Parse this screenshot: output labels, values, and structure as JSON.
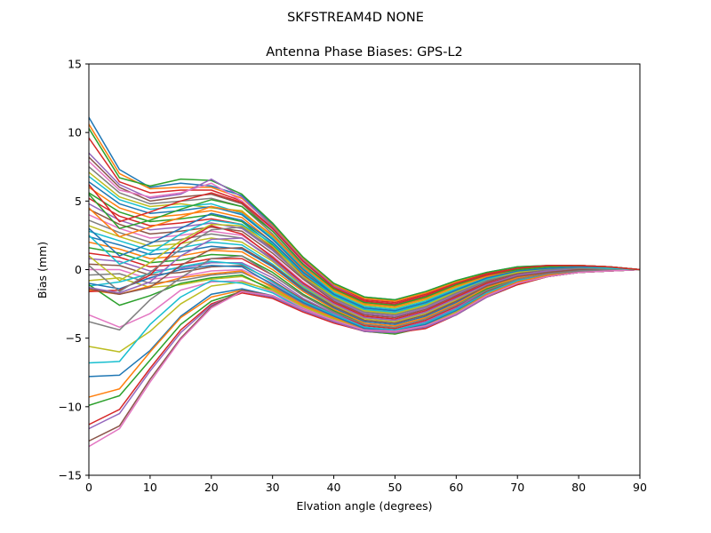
{
  "figure": {
    "suptitle": "SKFSTREAM4D     NONE"
  },
  "chart_data": {
    "type": "line",
    "title": "Antenna Phase Biases: GPS-L2",
    "xlabel": "Elvation angle (degrees)",
    "ylabel": "Bias (mm)",
    "xlim": [
      0,
      90
    ],
    "ylim": [
      -15,
      15
    ],
    "xticks": [
      0,
      10,
      20,
      30,
      40,
      50,
      60,
      70,
      80,
      90
    ],
    "yticks": [
      -15,
      -10,
      -5,
      0,
      5,
      10,
      15
    ],
    "grid": false,
    "legend": "none",
    "x": [
      0,
      5,
      10,
      15,
      20,
      25,
      30,
      35,
      40,
      45,
      50,
      55,
      60,
      65,
      70,
      75,
      80,
      85,
      90
    ],
    "palette": [
      "#1f77b4",
      "#ff7f0e",
      "#2ca02c",
      "#d62728",
      "#9467bd",
      "#8c564b",
      "#e377c2",
      "#7f7f7f",
      "#bcbd22",
      "#17becf"
    ],
    "series": [
      {
        "values": [
          11.1,
          7.3,
          6.0,
          6.3,
          6.1,
          5.4,
          3.3,
          0.9,
          -1.0,
          -2.0,
          -2.2,
          -1.6,
          -0.8,
          -0.2,
          0.2,
          0.3,
          0.3,
          0.2,
          0.0
        ]
      },
      {
        "values": [
          10.6,
          7.0,
          5.9,
          6.0,
          6.0,
          5.2,
          3.2,
          0.8,
          -1.1,
          -2.1,
          -2.3,
          -1.7,
          -0.9,
          -0.3,
          0.1,
          0.3,
          0.3,
          0.2,
          0.0
        ]
      },
      {
        "values": [
          10.3,
          6.7,
          6.1,
          6.6,
          6.5,
          5.5,
          3.4,
          0.9,
          -1.0,
          -2.0,
          -2.2,
          -1.6,
          -0.8,
          -0.2,
          0.2,
          0.3,
          0.3,
          0.2,
          0.0
        ]
      },
      {
        "values": [
          9.6,
          6.4,
          5.6,
          5.8,
          5.8,
          5.0,
          3.0,
          0.6,
          -1.2,
          -2.2,
          -2.4,
          -1.8,
          -1.0,
          -0.3,
          0.1,
          0.3,
          0.3,
          0.2,
          0.0
        ]
      },
      {
        "values": [
          8.5,
          6.2,
          5.2,
          5.5,
          6.6,
          5.3,
          3.1,
          0.7,
          -1.2,
          -2.3,
          -2.5,
          -1.9,
          -1.0,
          -0.4,
          0.1,
          0.2,
          0.3,
          0.2,
          0.0
        ]
      },
      {
        "values": [
          8.2,
          6.0,
          5.0,
          5.3,
          5.5,
          4.8,
          2.8,
          0.5,
          -1.4,
          -2.4,
          -2.6,
          -2.0,
          -1.1,
          -0.4,
          0.0,
          0.2,
          0.3,
          0.2,
          0.0
        ]
      },
      {
        "values": [
          7.9,
          5.8,
          5.3,
          5.6,
          6.3,
          5.0,
          2.9,
          0.5,
          -1.3,
          -2.3,
          -2.6,
          -2.0,
          -1.1,
          -0.4,
          0.0,
          0.2,
          0.3,
          0.2,
          0.0
        ]
      },
      {
        "values": [
          7.5,
          5.6,
          4.8,
          5.0,
          5.2,
          4.6,
          2.6,
          0.3,
          -1.5,
          -2.5,
          -2.7,
          -2.1,
          -1.2,
          -0.5,
          0.0,
          0.2,
          0.3,
          0.2,
          0.0
        ]
      },
      {
        "values": [
          7.1,
          5.3,
          4.6,
          4.8,
          4.5,
          4.3,
          2.4,
          0.2,
          -1.6,
          -2.6,
          -2.8,
          -2.2,
          -1.3,
          -0.5,
          -0.1,
          0.2,
          0.2,
          0.2,
          0.0
        ]
      },
      {
        "values": [
          6.8,
          5.1,
          4.4,
          4.6,
          4.8,
          4.1,
          2.3,
          0.1,
          -1.7,
          -2.7,
          -2.9,
          -2.3,
          -1.4,
          -0.6,
          -0.1,
          0.2,
          0.2,
          0.2,
          0.0
        ]
      },
      {
        "values": [
          6.4,
          4.8,
          4.1,
          4.3,
          4.6,
          4.0,
          2.2,
          0.0,
          -1.8,
          -2.8,
          -3.0,
          -2.4,
          -1.5,
          -0.6,
          -0.1,
          0.1,
          0.2,
          0.2,
          0.0
        ]
      },
      {
        "values": [
          6.0,
          4.5,
          3.8,
          4.0,
          4.3,
          3.8,
          2.0,
          -0.1,
          -1.9,
          -2.9,
          -3.1,
          -2.5,
          -1.5,
          -0.7,
          -0.2,
          0.1,
          0.2,
          0.1,
          0.0
        ]
      },
      {
        "values": [
          5.6,
          4.2,
          3.5,
          3.7,
          4.0,
          3.5,
          1.8,
          -0.3,
          -2.0,
          -3.0,
          -3.2,
          -2.6,
          -1.6,
          -0.7,
          -0.2,
          0.1,
          0.2,
          0.1,
          0.0
        ]
      },
      {
        "values": [
          5.2,
          3.9,
          3.2,
          3.4,
          3.7,
          3.3,
          1.6,
          -0.4,
          -2.1,
          -3.1,
          -3.3,
          -2.7,
          -1.7,
          -0.8,
          -0.3,
          0.0,
          0.2,
          0.1,
          0.0
        ]
      },
      {
        "values": [
          4.8,
          3.6,
          2.9,
          3.1,
          3.4,
          3.0,
          1.4,
          -0.6,
          -2.2,
          -3.2,
          -3.4,
          -2.8,
          -1.8,
          -0.8,
          -0.3,
          0.0,
          0.1,
          0.1,
          0.0
        ]
      },
      {
        "values": [
          4.4,
          3.3,
          2.6,
          2.8,
          3.1,
          2.8,
          1.2,
          -0.7,
          -2.3,
          -3.3,
          -3.5,
          -2.9,
          -1.9,
          -0.9,
          -0.3,
          0.0,
          0.1,
          0.1,
          0.0
        ]
      },
      {
        "values": [
          4.0,
          3.0,
          2.3,
          2.5,
          2.8,
          2.5,
          1.0,
          -0.9,
          -2.4,
          -3.4,
          -3.6,
          -3.0,
          -2.0,
          -1.0,
          -0.4,
          -0.1,
          0.1,
          0.1,
          0.0
        ]
      },
      {
        "values": [
          3.6,
          2.7,
          2.0,
          2.2,
          2.6,
          2.3,
          0.8,
          -1.0,
          -2.5,
          -3.5,
          -3.7,
          -3.1,
          -2.1,
          -1.0,
          -0.4,
          -0.1,
          0.1,
          0.1,
          0.0
        ]
      },
      {
        "values": [
          3.2,
          2.4,
          1.7,
          1.9,
          2.3,
          2.0,
          0.6,
          -1.2,
          -2.6,
          -3.6,
          -3.8,
          -3.2,
          -2.2,
          -1.1,
          -0.5,
          -0.1,
          0.0,
          0.1,
          0.0
        ]
      },
      {
        "values": [
          2.8,
          2.1,
          1.4,
          1.6,
          2.0,
          1.8,
          0.4,
          -1.3,
          -2.7,
          -3.7,
          -3.9,
          -3.3,
          -2.3,
          -1.2,
          -0.5,
          -0.2,
          0.0,
          0.0,
          0.0
        ]
      },
      {
        "values": [
          2.4,
          1.8,
          1.1,
          1.3,
          1.7,
          1.5,
          0.2,
          -1.5,
          -2.8,
          -3.8,
          -4.0,
          -3.4,
          -2.4,
          -1.2,
          -0.6,
          -0.2,
          0.0,
          0.0,
          0.0
        ]
      },
      {
        "values": [
          2.0,
          1.5,
          0.8,
          1.0,
          1.4,
          1.3,
          0.0,
          -1.6,
          -2.9,
          -3.9,
          -4.1,
          -3.5,
          -2.5,
          -1.3,
          -0.6,
          -0.2,
          0.0,
          0.0,
          0.0
        ]
      },
      {
        "values": [
          1.6,
          1.2,
          0.5,
          0.7,
          1.1,
          1.0,
          -0.2,
          -1.8,
          -3.0,
          -4.0,
          -4.2,
          -3.6,
          -2.6,
          -1.4,
          -0.7,
          -0.3,
          -0.1,
          0.0,
          0.0
        ]
      },
      {
        "values": [
          1.2,
          0.9,
          0.2,
          0.4,
          0.8,
          0.8,
          -0.4,
          -1.9,
          -3.1,
          -4.1,
          -4.3,
          -3.7,
          -2.7,
          -1.5,
          -0.7,
          -0.3,
          -0.1,
          0.0,
          0.0
        ]
      },
      {
        "values": [
          0.8,
          0.6,
          -0.1,
          0.1,
          0.5,
          0.5,
          -0.6,
          -2.1,
          -3.2,
          -4.2,
          -4.4,
          -3.8,
          -2.8,
          -1.5,
          -0.8,
          -0.3,
          -0.1,
          0.0,
          0.0
        ]
      },
      {
        "values": [
          0.4,
          0.3,
          -0.4,
          -0.2,
          0.2,
          0.3,
          -0.8,
          -2.2,
          -3.3,
          -4.3,
          -4.5,
          -3.9,
          -2.9,
          -1.6,
          -0.8,
          -0.4,
          -0.1,
          0.0,
          0.0
        ]
      },
      {
        "values": [
          0.0,
          0.0,
          -0.7,
          -0.5,
          -0.1,
          0.0,
          -1.0,
          -2.4,
          -3.4,
          -4.4,
          -4.6,
          -4.0,
          -3.0,
          -1.7,
          -0.9,
          -0.4,
          -0.2,
          -0.1,
          0.0
        ]
      },
      {
        "values": [
          -0.4,
          -0.3,
          -1.0,
          -0.8,
          -0.4,
          -0.2,
          -1.2,
          -2.5,
          -3.5,
          -4.4,
          -4.6,
          -4.1,
          -3.1,
          -1.8,
          -0.9,
          -0.4,
          -0.2,
          -0.1,
          0.0
        ]
      },
      {
        "values": [
          -0.8,
          -0.6,
          -1.3,
          -1.1,
          -0.7,
          -0.5,
          -1.4,
          -2.7,
          -3.6,
          -4.5,
          -4.7,
          -4.2,
          -3.2,
          -1.9,
          -1.0,
          -0.5,
          -0.2,
          -0.1,
          0.0
        ]
      },
      {
        "values": [
          -1.2,
          -0.9,
          -0.3,
          0.2,
          0.6,
          0.4,
          -0.9,
          -2.3,
          -3.3,
          -4.2,
          -4.4,
          -3.9,
          -2.9,
          -1.7,
          -0.8,
          -0.4,
          -0.1,
          0.0,
          0.0
        ]
      },
      {
        "values": [
          -1.0,
          -1.4,
          -0.6,
          0.0,
          0.3,
          0.2,
          -1.1,
          -2.4,
          -3.4,
          -4.3,
          -4.5,
          -4.0,
          -3.0,
          -1.8,
          -0.9,
          -0.4,
          -0.2,
          -0.1,
          0.0
        ]
      },
      {
        "values": [
          -1.5,
          -1.8,
          -1.2,
          -0.6,
          -0.3,
          -0.1,
          -1.3,
          -2.6,
          -3.5,
          -4.4,
          -4.6,
          -4.1,
          -3.1,
          -1.8,
          -0.9,
          -0.4,
          -0.2,
          -0.1,
          0.0
        ]
      },
      {
        "values": [
          -1.1,
          -2.6,
          -1.9,
          -1.0,
          -0.6,
          -0.4,
          -1.5,
          -2.7,
          -3.6,
          -4.5,
          -4.7,
          -4.2,
          -3.2,
          -1.9,
          -1.0,
          -0.5,
          -0.2,
          -0.1,
          0.0
        ]
      },
      {
        "values": [
          -1.6,
          -1.5,
          -0.4,
          1.9,
          3.2,
          2.6,
          0.9,
          -1.0,
          -2.4,
          -3.4,
          -3.6,
          -3.0,
          -2.0,
          -1.0,
          -0.4,
          -0.1,
          0.1,
          0.1,
          0.0
        ]
      },
      {
        "values": [
          -1.3,
          -1.7,
          -0.9,
          1.0,
          2.2,
          2.3,
          0.7,
          -1.1,
          -2.5,
          -3.5,
          -3.7,
          -3.1,
          -2.1,
          -1.1,
          -0.4,
          -0.1,
          0.1,
          0.1,
          0.0
        ]
      },
      {
        "values": [
          -1.4,
          -1.8,
          -1.3,
          0.3,
          1.5,
          1.6,
          0.3,
          -1.4,
          -2.7,
          -3.7,
          -3.9,
          -3.3,
          -2.3,
          -1.2,
          -0.5,
          -0.2,
          0.0,
          0.0,
          0.0
        ]
      },
      {
        "values": [
          -3.3,
          -4.2,
          -3.2,
          -1.5,
          -0.9,
          -0.8,
          -1.6,
          -2.8,
          -3.7,
          -4.5,
          -4.6,
          -4.2,
          -3.2,
          -1.9,
          -1.0,
          -0.5,
          -0.2,
          -0.1,
          0.0
        ]
      },
      {
        "values": [
          -3.8,
          -4.4,
          -2.2,
          -0.6,
          0.8,
          1.0,
          -0.4,
          -1.9,
          -3.1,
          -4.0,
          -4.2,
          -3.6,
          -2.6,
          -1.5,
          -0.7,
          -0.3,
          -0.1,
          0.0,
          0.0
        ]
      },
      {
        "values": [
          -5.6,
          -6.0,
          -4.5,
          -2.5,
          -1.2,
          -0.9,
          -1.5,
          -2.7,
          -3.6,
          -4.4,
          -4.6,
          -4.1,
          -3.1,
          -1.9,
          -1.0,
          -0.5,
          -0.2,
          -0.1,
          0.0
        ]
      },
      {
        "values": [
          -6.8,
          -6.7,
          -4.0,
          -2.0,
          -0.8,
          -1.0,
          -1.7,
          -2.9,
          -3.7,
          -4.5,
          -4.6,
          -4.2,
          -3.2,
          -1.9,
          -1.0,
          -0.5,
          -0.2,
          -0.1,
          0.0
        ]
      },
      {
        "values": [
          -7.8,
          -7.7,
          -5.9,
          -3.4,
          -1.8,
          -1.4,
          -1.9,
          -2.9,
          -3.8,
          -4.5,
          -4.6,
          -4.2,
          -3.2,
          -1.9,
          -1.0,
          -0.5,
          -0.2,
          -0.1,
          0.0
        ]
      },
      {
        "values": [
          -9.3,
          -8.7,
          -6.0,
          -3.5,
          -2.0,
          -1.5,
          -2.0,
          -3.0,
          -3.8,
          -4.5,
          -4.6,
          -4.2,
          -3.3,
          -2.0,
          -1.0,
          -0.5,
          -0.2,
          -0.1,
          0.0
        ]
      },
      {
        "values": [
          -9.9,
          -9.2,
          -6.6,
          -4.0,
          -2.3,
          -1.6,
          -2.0,
          -3.0,
          -3.8,
          -4.5,
          -4.6,
          -4.2,
          -3.3,
          -2.0,
          -1.1,
          -0.5,
          -0.2,
          -0.1,
          0.0
        ]
      },
      {
        "values": [
          -11.3,
          -10.2,
          -7.2,
          -4.4,
          -2.5,
          -1.7,
          -2.1,
          -3.1,
          -3.9,
          -4.5,
          -4.6,
          -4.3,
          -3.3,
          -2.0,
          -1.1,
          -0.5,
          -0.2,
          -0.1,
          0.0
        ]
      },
      {
        "values": [
          -11.6,
          -10.5,
          -7.4,
          -4.6,
          -2.6,
          -1.6,
          -2.0,
          -3.0,
          -3.8,
          -4.5,
          -4.6,
          -4.2,
          -3.3,
          -2.0,
          -1.0,
          -0.5,
          -0.2,
          -0.1,
          0.0
        ]
      },
      {
        "values": [
          -12.5,
          -11.4,
          -8.0,
          -5.0,
          -2.7,
          -1.5,
          -1.9,
          -2.9,
          -3.7,
          -4.4,
          -4.5,
          -4.1,
          -3.2,
          -1.9,
          -1.0,
          -0.5,
          -0.2,
          -0.1,
          0.0
        ]
      },
      {
        "values": [
          -12.9,
          -11.6,
          -8.2,
          -5.1,
          -2.8,
          -1.6,
          -1.9,
          -2.9,
          -3.7,
          -4.4,
          -4.5,
          -4.1,
          -3.2,
          -1.9,
          -1.0,
          -0.5,
          -0.2,
          -0.1,
          0.0
        ]
      },
      {
        "values": [
          0.3,
          -1.6,
          -0.2,
          1.5,
          2.9,
          3.1,
          1.5,
          -0.6,
          -2.1,
          -3.1,
          -3.3,
          -2.7,
          -1.7,
          -0.8,
          -0.2,
          0.0,
          0.1,
          0.1,
          0.0
        ]
      },
      {
        "values": [
          1.0,
          -0.8,
          0.5,
          2.1,
          3.3,
          3.2,
          1.7,
          -0.5,
          -2.0,
          -3.0,
          -3.2,
          -2.6,
          -1.6,
          -0.7,
          -0.2,
          0.1,
          0.2,
          0.1,
          0.0
        ]
      },
      {
        "values": [
          2.5,
          0.4,
          1.2,
          2.6,
          3.6,
          3.3,
          1.9,
          -0.3,
          -1.9,
          -2.9,
          -3.1,
          -2.5,
          -1.5,
          -0.7,
          -0.1,
          0.1,
          0.2,
          0.1,
          0.0
        ]
      },
      {
        "values": [
          3.0,
          1.0,
          1.9,
          3.0,
          4.1,
          3.6,
          2.0,
          -0.2,
          -1.8,
          -2.8,
          -3.0,
          -2.4,
          -1.5,
          -0.6,
          -0.1,
          0.1,
          0.2,
          0.2,
          0.0
        ]
      },
      {
        "values": [
          4.5,
          2.4,
          3.1,
          3.8,
          4.6,
          4.2,
          2.5,
          0.2,
          -1.5,
          -2.5,
          -2.7,
          -2.1,
          -1.2,
          -0.5,
          0.0,
          0.2,
          0.3,
          0.2,
          0.0
        ]
      },
      {
        "values": [
          5.5,
          3.0,
          3.6,
          4.4,
          5.1,
          4.6,
          2.8,
          0.4,
          -1.4,
          -2.4,
          -2.6,
          -2.0,
          -1.1,
          -0.4,
          0.0,
          0.2,
          0.3,
          0.2,
          0.0
        ]
      },
      {
        "values": [
          6.2,
          3.5,
          4.2,
          5.0,
          5.6,
          4.9,
          3.0,
          0.6,
          -1.3,
          -2.3,
          -2.5,
          -1.9,
          -1.0,
          -0.4,
          0.1,
          0.3,
          0.3,
          0.2,
          0.0
        ]
      }
    ]
  }
}
